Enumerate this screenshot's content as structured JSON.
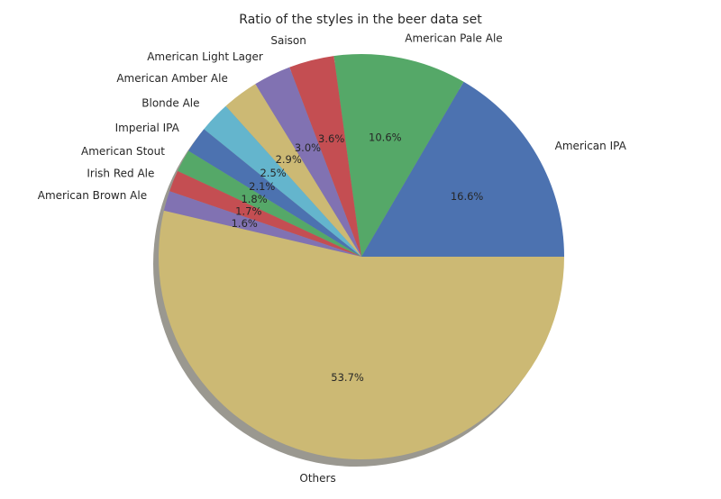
{
  "chart_data": {
    "type": "pie",
    "title": "Ratio of the styles in the beer data set",
    "start_angle_deg": 0,
    "direction": "counterclockwise",
    "shadow": true,
    "slices": [
      {
        "label": "American IPA",
        "value": 16.6,
        "pct_label": "16.6%",
        "color": "#4c72b0"
      },
      {
        "label": "American Pale Ale",
        "value": 10.6,
        "pct_label": "10.6%",
        "color": "#55a868"
      },
      {
        "label": "Saison",
        "value": 3.6,
        "pct_label": "3.6%",
        "color": "#c44e52"
      },
      {
        "label": "American Light Lager",
        "value": 3.0,
        "pct_label": "3.0%",
        "color": "#8172b2"
      },
      {
        "label": "American Amber Ale",
        "value": 2.9,
        "pct_label": "2.9%",
        "color": "#ccb974"
      },
      {
        "label": "Blonde Ale",
        "value": 2.5,
        "pct_label": "2.5%",
        "color": "#64b5cd"
      },
      {
        "label": "Imperial IPA",
        "value": 2.1,
        "pct_label": "2.1%",
        "color": "#4c72b0"
      },
      {
        "label": "American Stout",
        "value": 1.8,
        "pct_label": "1.8%",
        "color": "#55a868"
      },
      {
        "label": "Irish Red Ale",
        "value": 1.7,
        "pct_label": "1.7%",
        "color": "#c44e52"
      },
      {
        "label": "American Brown Ale",
        "value": 1.6,
        "pct_label": "1.6%",
        "color": "#8172b2"
      },
      {
        "label": "Others",
        "value": 53.7,
        "pct_label": "53.7%",
        "color": "#ccb974"
      }
    ]
  }
}
